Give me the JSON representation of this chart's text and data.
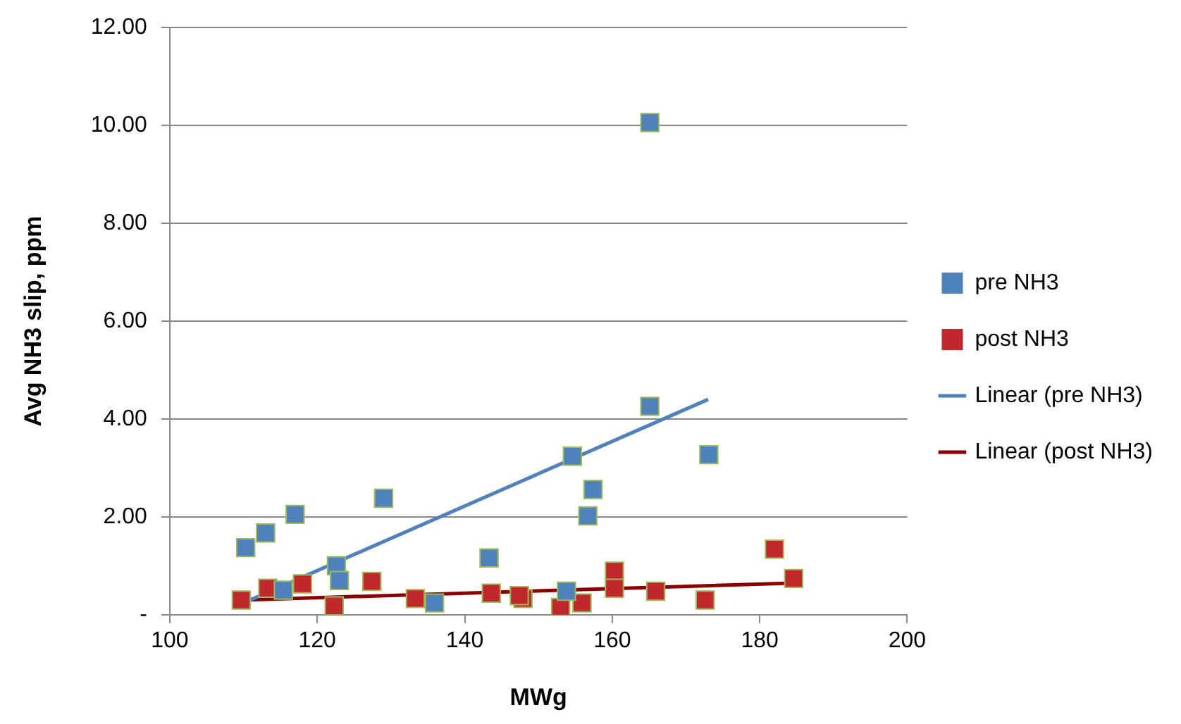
{
  "chart_data": {
    "type": "scatter",
    "xlabel": "MWg",
    "ylabel": "Avg NH3 slip, ppm",
    "xlim": [
      100,
      200
    ],
    "xticks": [
      100,
      120,
      140,
      160,
      180,
      200
    ],
    "ylim": [
      0,
      12
    ],
    "yticks": [
      {
        "value": 0,
        "label": "-"
      },
      {
        "value": 2,
        "label": "2.00"
      },
      {
        "value": 4,
        "label": "4.00"
      },
      {
        "value": 6,
        "label": "6.00"
      },
      {
        "value": 8,
        "label": "8.00"
      },
      {
        "value": 10,
        "label": "10.00"
      },
      {
        "value": 12,
        "label": "12.00"
      }
    ],
    "grid": "y",
    "legend": "right",
    "marker": "square",
    "series": [
      {
        "name": "pre NH3",
        "color": "#4f81bd",
        "x": [
          110.3,
          113,
          117,
          115.4,
          122.6,
          123,
          129,
          135.9,
          143.3,
          153.8,
          154.6,
          157.4,
          156.7,
          165.1,
          165.1,
          173.1
        ],
        "values": [
          1.37,
          1.67,
          2.05,
          0.5,
          1.0,
          0.7,
          2.38,
          0.24,
          1.16,
          0.48,
          3.24,
          2.56,
          2.02,
          4.26,
          10.06,
          3.27
        ]
      },
      {
        "name": "post NH3",
        "color": "#c0282d",
        "x": [
          109.7,
          113.3,
          118,
          122.3,
          127.4,
          133.3,
          143.6,
          147.9,
          147.4,
          153,
          155.9,
          160.3,
          160.3,
          165.9,
          172.6,
          182,
          184.6
        ],
        "values": [
          0.3,
          0.54,
          0.63,
          0.18,
          0.68,
          0.33,
          0.44,
          0.33,
          0.39,
          0.15,
          0.24,
          0.89,
          0.54,
          0.48,
          0.3,
          1.34,
          0.74
        ]
      },
      {
        "name": "Linear (pre NH3)",
        "type": "line",
        "color": "#4f81bd",
        "x": [
          110,
          173
        ],
        "values": [
          0.24,
          4.4
        ],
        "marker": "none"
      },
      {
        "name": "Linear (post NH3)",
        "type": "line",
        "color": "#8b0000",
        "x": [
          110,
          185
        ],
        "values": [
          0.3,
          0.65
        ],
        "marker": "none"
      }
    ]
  }
}
